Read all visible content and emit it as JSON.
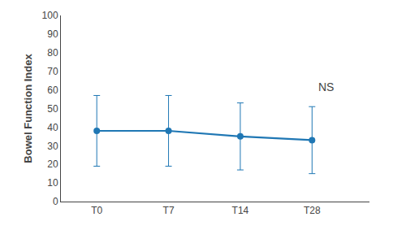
{
  "chart_data": {
    "type": "line",
    "categories": [
      "T0",
      "T7",
      "T14",
      "T28"
    ],
    "values": [
      38,
      38,
      35,
      33
    ],
    "errors": [
      19,
      19,
      18,
      18
    ],
    "ylabel": "Bowel Function Index",
    "ylim": [
      0,
      100
    ],
    "yticks": [
      0,
      10,
      20,
      30,
      40,
      50,
      60,
      70,
      80,
      90,
      100
    ],
    "marker": "circle",
    "grid": false,
    "annotations": [
      {
        "text": "NS",
        "category": "T28",
        "y": 57
      }
    ]
  }
}
